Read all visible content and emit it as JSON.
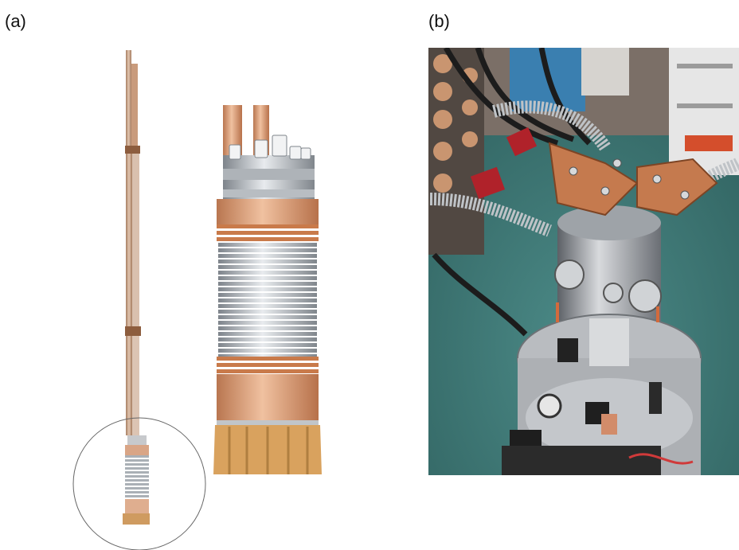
{
  "labels": {
    "panel_a": "(a)",
    "panel_b": "(b)"
  },
  "colors": {
    "copper": "#d79a6e",
    "copper_dark": "#b0683f",
    "steel": "#c9ccd0",
    "steel_dark": "#8d9298",
    "floor": "#3f7a78",
    "background": "#ffffff"
  }
}
